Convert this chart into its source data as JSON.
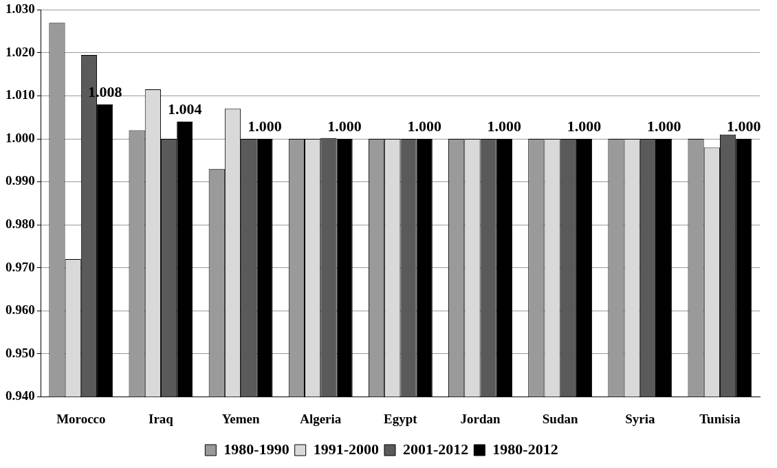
{
  "chart_data": {
    "type": "bar",
    "categories": [
      "Morocco",
      "Iraq",
      "Yemen",
      "Algeria",
      "Egypt",
      "Jordan",
      "Sudan",
      "Syria",
      "Tunisia"
    ],
    "series": [
      {
        "name": "1980-1990",
        "color": "#9a9a9a",
        "values": [
          1.027,
          1.002,
          0.993,
          1.0,
          1.0,
          1.0,
          1.0,
          1.0,
          1.0
        ]
      },
      {
        "name": "1991-2000",
        "color": "#d9d9d9",
        "values": [
          0.972,
          1.0115,
          1.007,
          1.0,
          1.0,
          1.0,
          1.0,
          1.0,
          0.998
        ]
      },
      {
        "name": "2001-2012",
        "color": "#5a5a5a",
        "values": [
          1.0195,
          1.0,
          1.0,
          1.0002,
          1.0,
          1.0,
          1.0,
          1.0,
          1.001
        ]
      },
      {
        "name": "1980-2012",
        "color": "#000000",
        "values": [
          1.008,
          1.004,
          1.0,
          1.0,
          1.0,
          1.0,
          1.0,
          1.0,
          1.0
        ],
        "value_labels": [
          "1.008",
          "1.004",
          "1.000",
          "1.000",
          "1.000",
          "1.000",
          "1.000",
          "1.000",
          "1.000"
        ]
      }
    ],
    "ylim": [
      0.94,
      1.03
    ],
    "yticks": [
      {
        "value": 0.94,
        "label": "0.940"
      },
      {
        "value": 0.95,
        "label": "0.950"
      },
      {
        "value": 0.96,
        "label": "0.960"
      },
      {
        "value": 0.97,
        "label": "0.970"
      },
      {
        "value": 0.98,
        "label": "0.980"
      },
      {
        "value": 0.99,
        "label": "0.990"
      },
      {
        "value": 1.0,
        "label": "1.000"
      },
      {
        "value": 1.01,
        "label": "1.010"
      },
      {
        "value": 1.02,
        "label": "1.020"
      },
      {
        "value": 1.03,
        "label": "1.030"
      }
    ],
    "grid": "y",
    "legend": "bottom"
  }
}
